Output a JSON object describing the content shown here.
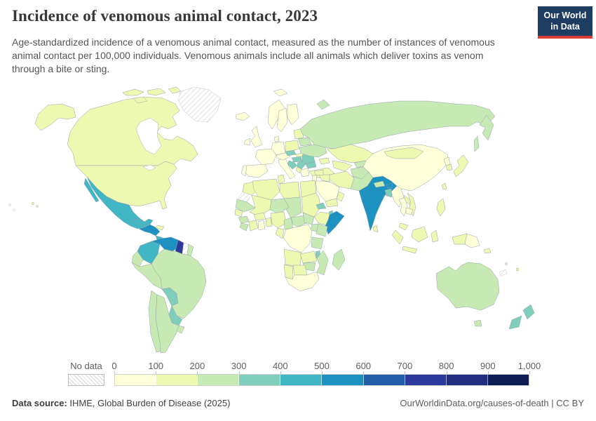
{
  "header": {
    "title": "Incidence of venomous animal contact, 2023",
    "subtitle": "Age-standardized incidence of a venomous animal contact, measured as the number of instances of venomous animal contact per 100,000 individuals. Venomous animals include all animals which deliver toxins as venom through a bite or sting.",
    "logo": {
      "line1": "Our World",
      "line2": "in Data",
      "bg_color": "#1d3d63",
      "accent_color": "#d93d33"
    }
  },
  "legend": {
    "no_data_label": "No data",
    "ticks": [
      "0",
      "100",
      "200",
      "300",
      "400",
      "500",
      "600",
      "700",
      "800",
      "900",
      "1,000"
    ]
  },
  "footer": {
    "source_label": "Data source:",
    "source_value": "IHME, Global Burden of Disease (2025)",
    "attribution_link": "OurWorldinData.org/causes-of-death",
    "separator": "|",
    "attribution_license": "CC BY"
  },
  "chart_data": {
    "type": "choropleth",
    "title": "Incidence of venomous animal contact, 2023",
    "year": 2023,
    "unit": "age-standardized instances of venomous animal contact per 100,000 individuals",
    "bins": [
      {
        "range": "0-100",
        "color": "#ffffd9"
      },
      {
        "range": "100-200",
        "color": "#edf8b1"
      },
      {
        "range": "200-300",
        "color": "#c7e9b4"
      },
      {
        "range": "300-400",
        "color": "#7fcdbb"
      },
      {
        "range": "400-500",
        "color": "#41b6c4"
      },
      {
        "range": "500-600",
        "color": "#1d91c0"
      },
      {
        "range": "600-700",
        "color": "#225ea8"
      },
      {
        "range": "700-800",
        "color": "#2c3a9c"
      },
      {
        "range": "800-900",
        "color": "#232e81"
      },
      {
        "range": "900-1000",
        "color": "#0f1d55"
      }
    ],
    "no_data": [
      "greenland",
      "suriname",
      "western-sahara",
      "new-caledonia",
      "french-polynesia"
    ],
    "country_bins": {
      "canada": 1,
      "united-states": 1,
      "mexico": 4,
      "guatemala-honduras-nicaragua": 5,
      "costa-rica-panama": 4,
      "cuba": 4,
      "hispaniola": 1,
      "colombia": 4,
      "venezuela": 5,
      "guyana": 7,
      "suriname": "no-data",
      "french-guiana": 2,
      "ecuador": 2,
      "peru": 2,
      "brazil": 2,
      "bolivia": 3,
      "paraguay": 3,
      "chile": 2,
      "argentina": 2,
      "uruguay": 2,
      "greenland": "no-data",
      "iceland": 0,
      "united-kingdom": 0,
      "ireland": 0,
      "norway": 0,
      "sweden": 0,
      "finland": 0,
      "denmark": 0,
      "germany": 0,
      "france": 0,
      "spain": 0,
      "portugal": 0,
      "italy": 0,
      "austria-switzerland": 0,
      "greece": 0,
      "albania-macedonia": 1,
      "czechia": 3,
      "poland": 1,
      "slovakia": 1,
      "hungary": 3,
      "romania": 3,
      "croatia-bosnia": 3,
      "serbia": 3,
      "bulgaria": 3,
      "baltics": 1,
      "belarus": 2,
      "ukraine": 2,
      "turkey": 1,
      "russia": 2,
      "kazakhstan": 1,
      "uzbekistan-turkmenistan": 1,
      "kyrgyzstan-tajikistan": 2,
      "caucasus": 1,
      "iran": 1,
      "iraq": 1,
      "syria": 1,
      "jordan-israel": 0,
      "saudi-arabia": 0,
      "yemen": 1,
      "oman": 1,
      "afghanistan": 2,
      "pakistan": 2,
      "india": 5,
      "nepal": 2,
      "bhutan": 5,
      "bangladesh": 3,
      "sri-lanka": 1,
      "china": 0,
      "mongolia": 1,
      "north-korea": 0,
      "south-korea": 1,
      "japan": 1,
      "taiwan": 1,
      "myanmar": 0,
      "thailand": 0,
      "laos": 1,
      "vietnam": 1,
      "cambodia": 0,
      "malaysia": 1,
      "indonesia": 1,
      "philippines": 1,
      "papua-new-guinea": 0,
      "morocco": 1,
      "western-sahara": "no-data",
      "algeria": 1,
      "tunisia": 1,
      "libya": 1,
      "egypt": 1,
      "mauritania": 2,
      "mali": 1,
      "niger": 2,
      "chad": 2,
      "sudan": 1,
      "eritrea": 3,
      "ethiopia": 1,
      "djibouti": 3,
      "somalia": 5,
      "senegal": 1,
      "guinea": 2,
      "sierra-leone-liberia": 2,
      "ivory-coast": 1,
      "ghana": 0,
      "burkina-faso": 1,
      "togo-benin": 1,
      "nigeria": 1,
      "cameroon": 2,
      "central-african-republic": 2,
      "south-sudan": 2,
      "uganda": 2,
      "kenya": 2,
      "democratic-republic-of-congo": 0,
      "congo-gabon": 1,
      "tanzania": 2,
      "angola": 1,
      "zambia": 1,
      "malawi": 3,
      "mozambique": 2,
      "zimbabwe": 2,
      "botswana": 1,
      "namibia": 1,
      "south-africa": 0,
      "madagascar": 2,
      "australia": 2,
      "new-zealand": 3,
      "fiji": 1,
      "solomon-islands": 1,
      "vanuatu": 1,
      "new-caledonia": "no-data",
      "french-polynesia": "no-data"
    }
  }
}
